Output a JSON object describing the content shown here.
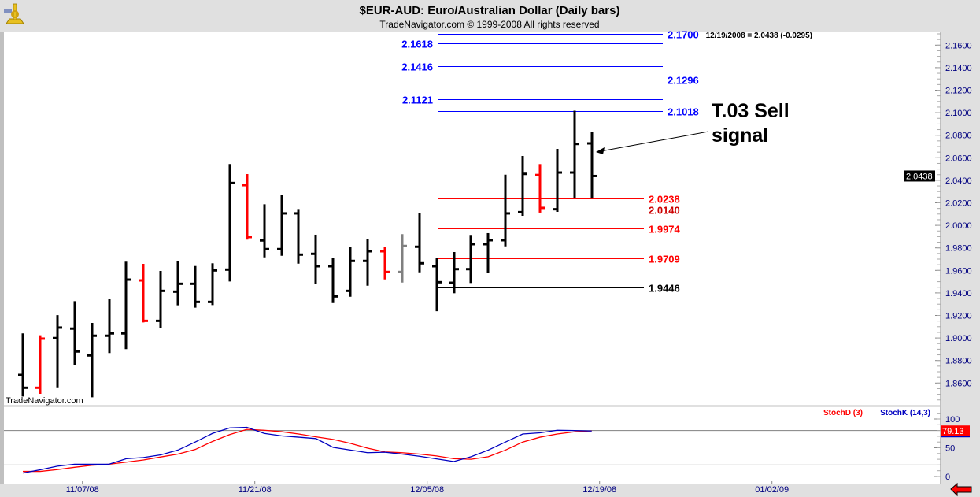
{
  "header": {
    "title": "$EUR-AUD:  Euro/Australian Dollar  (Daily bars)",
    "copyright": "TradeNavigator.com © 1999-2008 All rights reserved",
    "last_quote": "12/19/2008 = 2.0438 (-0.0295)",
    "logo_icon": "sextant-icon"
  },
  "watermark": "TradeNavigator.com",
  "annotation": {
    "line1": "T.03 Sell",
    "line2": "signal"
  },
  "nav": {
    "scroll_left_icon": "red-arrow-left-icon"
  },
  "colors": {
    "up_bar": "#000000",
    "red_bar": "#ff0000",
    "gray_bar": "#808080",
    "fib_blue": "#0000ff",
    "fib_red": "#ff0000",
    "fib_dark_red": "#cc0000",
    "stoch_k": "#0000c0",
    "stoch_d": "#ff0000",
    "axis_text": "#000080",
    "panel_bg": "#e0e0e0"
  },
  "chart_data": [
    {
      "type": "ohlc",
      "title": "$EUR-AUD:  Euro/Australian Dollar  (Daily bars)",
      "ylim": [
        1.845,
        2.175
      ],
      "yticks": [
        "2.1600",
        "2.1400",
        "2.1200",
        "2.1000",
        "2.0800",
        "2.0600",
        "2.0400",
        "2.0200",
        "2.0000",
        "1.9800",
        "1.9600",
        "1.9400",
        "1.9200",
        "1.9000",
        "1.8800",
        "1.8600"
      ],
      "last_price_label": "2.0438",
      "xticks": [
        "11/07/08",
        "11/21/08",
        "12/05/08",
        "12/19/08",
        "01/02/09"
      ],
      "bars": [
        {
          "date": "11/04/08",
          "o": 1.8672,
          "h": 1.9041,
          "l": 1.8481,
          "c": 1.8558,
          "color": "black"
        },
        {
          "date": "11/05/08",
          "o": 1.8558,
          "h": 1.9024,
          "l": 1.8504,
          "c": 1.8994,
          "color": "red"
        },
        {
          "date": "11/06/08",
          "o": 1.8999,
          "h": 1.9203,
          "l": 1.8562,
          "c": 1.9092,
          "color": "black"
        },
        {
          "date": "11/07/08",
          "o": 1.9083,
          "h": 1.9327,
          "l": 1.8761,
          "c": 1.888,
          "color": "black"
        },
        {
          "date": "11/10/08",
          "o": 1.8845,
          "h": 1.9134,
          "l": 1.8474,
          "c": 1.902,
          "color": "black"
        },
        {
          "date": "11/11/08",
          "o": 1.902,
          "h": 1.9343,
          "l": 1.8866,
          "c": 1.9041,
          "color": "black"
        },
        {
          "date": "11/12/08",
          "o": 1.9041,
          "h": 1.9677,
          "l": 1.8901,
          "c": 1.9518,
          "color": "black"
        },
        {
          "date": "11/13/08",
          "o": 1.9511,
          "h": 1.9658,
          "l": 1.9138,
          "c": 1.9152,
          "color": "red"
        },
        {
          "date": "11/14/08",
          "o": 1.9152,
          "h": 1.9595,
          "l": 1.9087,
          "c": 1.9418,
          "color": "black"
        },
        {
          "date": "11/17/08",
          "o": 1.9411,
          "h": 1.9686,
          "l": 1.929,
          "c": 1.9481,
          "color": "black"
        },
        {
          "date": "11/18/08",
          "o": 1.9481,
          "h": 1.9639,
          "l": 1.9269,
          "c": 1.932,
          "color": "black"
        },
        {
          "date": "11/19/08",
          "o": 1.932,
          "h": 1.9663,
          "l": 1.9292,
          "c": 1.96,
          "color": "black"
        },
        {
          "date": "11/20/08",
          "o": 1.9607,
          "h": 2.0544,
          "l": 1.9502,
          "c": 2.0376,
          "color": "black"
        },
        {
          "date": "11/21/08",
          "o": 2.0357,
          "h": 2.0455,
          "l": 1.9873,
          "c": 1.9896,
          "color": "red"
        },
        {
          "date": "11/24/08",
          "o": 1.9866,
          "h": 2.0187,
          "l": 1.9716,
          "c": 1.9789,
          "color": "black"
        },
        {
          "date": "11/25/08",
          "o": 1.9789,
          "h": 2.0273,
          "l": 1.973,
          "c": 2.0106,
          "color": "black"
        },
        {
          "date": "11/26/08",
          "o": 2.0106,
          "h": 2.0145,
          "l": 1.966,
          "c": 1.974,
          "color": "black"
        },
        {
          "date": "11/27/08",
          "o": 1.9747,
          "h": 1.9917,
          "l": 1.9478,
          "c": 1.9637,
          "color": "black"
        },
        {
          "date": "11/28/08",
          "o": 1.9637,
          "h": 1.9714,
          "l": 1.931,
          "c": 1.9369,
          "color": "black"
        },
        {
          "date": "12/01/08",
          "o": 1.9418,
          "h": 1.981,
          "l": 1.9366,
          "c": 1.9684,
          "color": "black"
        },
        {
          "date": "12/02/08",
          "o": 1.9684,
          "h": 1.988,
          "l": 1.9464,
          "c": 1.977,
          "color": "black"
        },
        {
          "date": "12/03/08",
          "o": 1.977,
          "h": 1.981,
          "l": 1.952,
          "c": 1.9586,
          "color": "red"
        },
        {
          "date": "12/04/08",
          "o": 1.9586,
          "h": 1.9922,
          "l": 1.9492,
          "c": 1.9817,
          "color": "gray"
        },
        {
          "date": "12/05/08",
          "o": 1.981,
          "h": 2.0106,
          "l": 1.9583,
          "c": 1.9663,
          "color": "black"
        },
        {
          "date": "12/08/08",
          "o": 1.9637,
          "h": 1.9707,
          "l": 1.9238,
          "c": 1.9495,
          "color": "black"
        },
        {
          "date": "12/09/08",
          "o": 1.949,
          "h": 1.9763,
          "l": 1.9397,
          "c": 1.9611,
          "color": "black"
        },
        {
          "date": "12/10/08",
          "o": 1.9611,
          "h": 1.9915,
          "l": 1.9488,
          "c": 1.9833,
          "color": "black"
        },
        {
          "date": "12/11/08",
          "o": 1.9833,
          "h": 1.9931,
          "l": 1.9576,
          "c": 1.9868,
          "color": "black"
        },
        {
          "date": "12/12/08",
          "o": 1.9868,
          "h": 2.045,
          "l": 1.9814,
          "c": 2.0106,
          "color": "black"
        },
        {
          "date": "12/15/08",
          "o": 2.0117,
          "h": 2.0616,
          "l": 2.0085,
          "c": 2.0457,
          "color": "black"
        },
        {
          "date": "12/16/08",
          "o": 2.0447,
          "h": 2.0544,
          "l": 2.0113,
          "c": 2.0155,
          "color": "red"
        },
        {
          "date": "12/17/08",
          "o": 2.0143,
          "h": 2.0679,
          "l": 2.012,
          "c": 2.0469,
          "color": "black"
        },
        {
          "date": "12/18/08",
          "o": 2.0469,
          "h": 2.1018,
          "l": 2.0241,
          "c": 2.0723,
          "color": "black"
        },
        {
          "date": "12/19/08",
          "o": 2.0728,
          "h": 2.0831,
          "l": 2.0238,
          "c": 2.0438,
          "color": "black"
        }
      ],
      "levels": [
        {
          "value": 2.17,
          "label": "2.1700",
          "color": "#0000ff",
          "side": "right"
        },
        {
          "value": 2.1618,
          "label": "2.1618",
          "color": "#0000ff",
          "side": "left"
        },
        {
          "value": 2.1416,
          "label": "2.1416",
          "color": "#0000ff",
          "side": "left"
        },
        {
          "value": 2.1296,
          "label": "2.1296",
          "color": "#0000ff",
          "side": "right"
        },
        {
          "value": 2.1121,
          "label": "2.1121",
          "color": "#0000ff",
          "side": "left"
        },
        {
          "value": 2.1018,
          "label": "2.1018",
          "color": "#0000ff",
          "side": "right"
        },
        {
          "value": 2.0238,
          "label": "2.0238",
          "color": "#ff0000",
          "side": "right"
        },
        {
          "value": 2.014,
          "label": "2.0140",
          "color": "#cc0000",
          "side": "right"
        },
        {
          "value": 1.9974,
          "label": "1.9974",
          "color": "#ff0000",
          "side": "right"
        },
        {
          "value": 1.9709,
          "label": "1.9709",
          "color": "#ff0000",
          "side": "right"
        },
        {
          "value": 1.9446,
          "label": "1.9446",
          "color": "#000000",
          "side": "right"
        }
      ]
    },
    {
      "type": "line",
      "ylim": [
        0,
        100
      ],
      "yticks": [
        "100",
        "50",
        "0"
      ],
      "reference_lines": [
        80,
        20
      ],
      "last_value_label": "79.13",
      "series": [
        {
          "name": "StochD (3)",
          "color": "#ff0000",
          "values": [
            8.8,
            8.8,
            12,
            16,
            19.5,
            21.4,
            25,
            28.8,
            34,
            39,
            47,
            61,
            73,
            82,
            80.5,
            78,
            74,
            69,
            64.6,
            57.7,
            49.3,
            42.8,
            41.4,
            39,
            35.8,
            31,
            30,
            34.4,
            46,
            60,
            68.4,
            74,
            77.7,
            79.5
          ]
        },
        {
          "name": "StochK (14,3)",
          "color": "#0000c0",
          "values": [
            6,
            11.6,
            18,
            21.4,
            21.4,
            21.4,
            31,
            33,
            37.7,
            46,
            60,
            75,
            84.6,
            85.6,
            75,
            70.7,
            68.4,
            66,
            50.7,
            46,
            41.4,
            42.3,
            39,
            35.3,
            30.7,
            26,
            34.4,
            46,
            60,
            74,
            76,
            80.5,
            80,
            79.13
          ]
        }
      ]
    }
  ]
}
